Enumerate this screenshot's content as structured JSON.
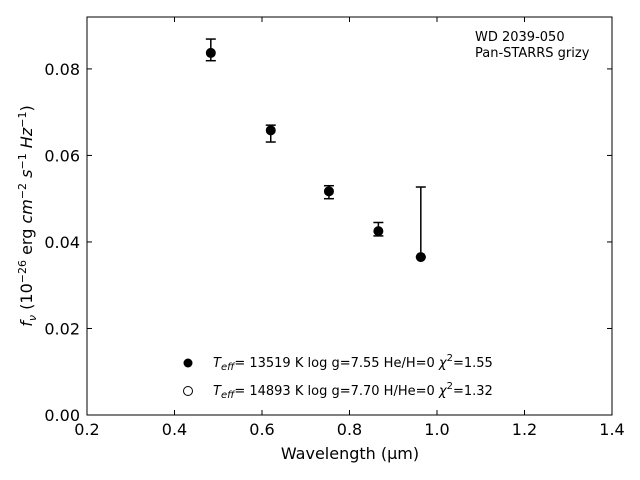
{
  "chart_data": {
    "type": "scatter",
    "annotation": [
      "WD 2039-050",
      "Pan-STARRS grizy"
    ],
    "xlabel": "Wavelength (μm)",
    "xlim": [
      0.2,
      1.4
    ],
    "ylim": [
      0.0,
      0.092
    ],
    "xticks": [
      0.2,
      0.4,
      0.6,
      0.8,
      1.0,
      1.2,
      1.4
    ],
    "xtick_labels": [
      "0.2",
      "0.4",
      "0.6",
      "0.8",
      "1.0",
      "1.2",
      "1.4"
    ],
    "yticks": [
      0.0,
      0.02,
      0.04,
      0.06,
      0.08
    ],
    "ytick_labels": [
      "0.00",
      "0.02",
      "0.04",
      "0.06",
      "0.08"
    ],
    "grid": false,
    "legend_position": "bottom-center",
    "series": [
      {
        "marker": "filled-circle",
        "color": "#000000",
        "x": [
          0.483,
          0.62,
          0.753,
          0.866,
          0.963
        ],
        "y": [
          0.0837,
          0.0658,
          0.0517,
          0.0425,
          0.0365
        ],
        "err_low": [
          0.0018,
          0.0027,
          0.0017,
          0.0011,
          0.0
        ],
        "err_high": [
          0.0032,
          0.0012,
          0.0013,
          0.002,
          0.0162
        ]
      },
      {
        "marker": "open-circle",
        "color": "#000000",
        "x": [],
        "y": []
      }
    ]
  }
}
